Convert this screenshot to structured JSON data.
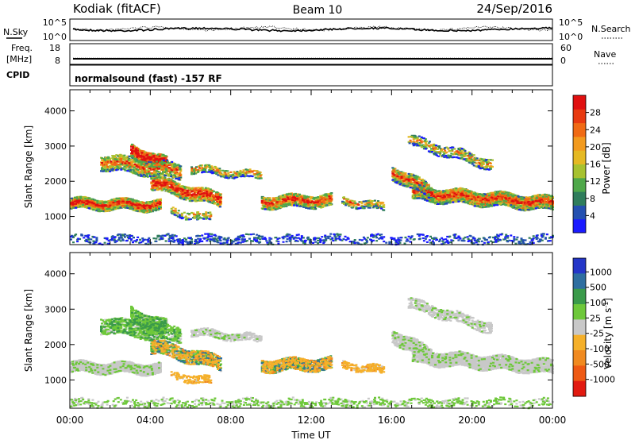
{
  "header": {
    "station": "Kodiak (fitACF)",
    "beam": "Beam 10",
    "date": "24/Sep/2016"
  },
  "noise_panel": {
    "left_label": "N.Sky",
    "right_label": "N.Search",
    "tick_top": "10^5",
    "tick_bottom": "10^0"
  },
  "freq_panel": {
    "left_label_1": "Freq.",
    "left_label_2": "[MHz]",
    "right_label": "Nave",
    "left_ticks": [
      "18",
      "8"
    ],
    "right_ticks": [
      "60",
      "0"
    ]
  },
  "cpid_panel": {
    "label": "CPID",
    "text": "normalsound (fast) -157 RF"
  },
  "chart_data": [
    {
      "type": "heatmap",
      "title": "",
      "ylabel": "Slant Range [km]",
      "xlabel": "",
      "ylim": [
        200,
        4600
      ],
      "y_ticks": [
        "1000",
        "2000",
        "3000",
        "4000"
      ],
      "colorbar": {
        "label": "Power [dB]",
        "ticks": [
          "4",
          "8",
          "12",
          "16",
          "20",
          "24",
          "28"
        ],
        "colors": [
          "#1a1aff",
          "#2450b0",
          "#2f7d5c",
          "#4fa84a",
          "#a7c230",
          "#e5b923",
          "#f29a1e",
          "#f06a14",
          "#e83a10",
          "#e01010"
        ]
      }
    },
    {
      "type": "heatmap",
      "title": "",
      "ylabel": "Slant Range [km]",
      "xlabel": "Time UT",
      "ylim": [
        200,
        4600
      ],
      "y_ticks": [
        "1000",
        "2000",
        "3000",
        "4000"
      ],
      "x_ticks": [
        "00:00",
        "04:00",
        "08:00",
        "12:00",
        "16:00",
        "20:00",
        "00:00"
      ],
      "colorbar": {
        "label": "Velocity [m s^-1]",
        "ticks": [
          "1000",
          "500",
          "100",
          "25",
          "-25",
          "-100",
          "-500",
          "-1000"
        ],
        "colors": [
          "#2436c8",
          "#2e6ea0",
          "#3a9a4a",
          "#6ec83a",
          "#c8c8c8",
          "#f5b02a",
          "#f08a20",
          "#ee5a14",
          "#e21a10"
        ]
      }
    }
  ]
}
